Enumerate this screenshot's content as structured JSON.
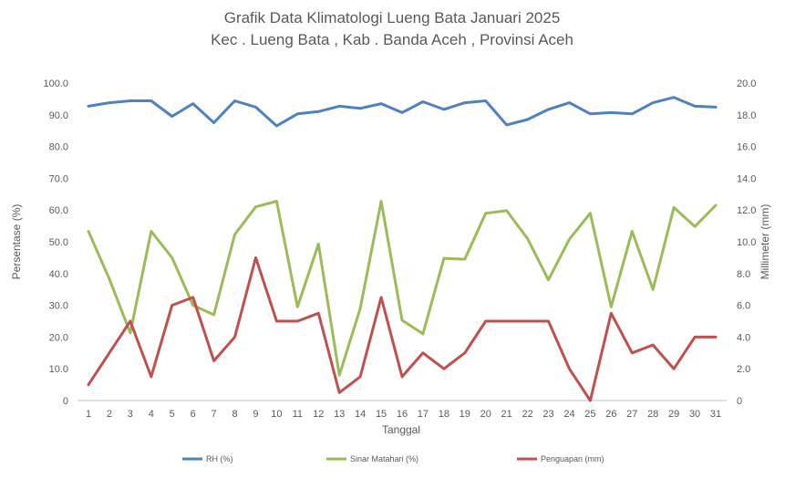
{
  "chart_data": {
    "type": "line",
    "title": "Grafik Data Klimatologi Lueng Bata Januari 2025",
    "subtitle": "Kec . Lueng Bata , Kab . Banda Aceh , Provinsi  Aceh",
    "xlabel": "Tanggal",
    "ylabel": "Persentase (%)",
    "y2label": "Millimeter (mm)",
    "ylim": [
      0,
      100
    ],
    "y2lim": [
      0,
      20
    ],
    "yticks": [
      "0",
      "10.0",
      "20.0",
      "30.0",
      "40.0",
      "50.0",
      "60.0",
      "70.0",
      "80.0",
      "90.0",
      "100.0"
    ],
    "y2ticks": [
      "0",
      "2.0",
      "4.0",
      "6.0",
      "8.0",
      "10.0",
      "12.0",
      "14.0",
      "16.0",
      "18.0",
      "20.0"
    ],
    "x": [
      "1",
      "2",
      "3",
      "4",
      "5",
      "6",
      "7",
      "8",
      "9",
      "10",
      "11",
      "12",
      "13",
      "14",
      "15",
      "16",
      "17",
      "18",
      "19",
      "20",
      "21",
      "22",
      "23",
      "24",
      "25",
      "26",
      "27",
      "28",
      "29",
      "30",
      "31"
    ],
    "grid": "off",
    "legend_position": "bottom",
    "series": [
      {
        "name": "RH (%)",
        "axis": "left",
        "color": "#4F81BD",
        "values": [
          92.7,
          93.8,
          94.4,
          94.4,
          89.5,
          93.5,
          87.5,
          94.4,
          92.4,
          86.5,
          90.3,
          91.0,
          92.7,
          92.0,
          93.5,
          90.7,
          94.1,
          91.7,
          93.8,
          94.4,
          86.8,
          88.5,
          91.7,
          93.8,
          90.3,
          90.7,
          90.3,
          93.8,
          95.5,
          92.7,
          92.4
        ]
      },
      {
        "name": "Sinar Matahari (%)",
        "axis": "left",
        "color": "#9BBB59",
        "values": [
          53.3,
          38.3,
          21.3,
          53.3,
          45.0,
          30.0,
          27.0,
          52.3,
          61.0,
          62.8,
          29.5,
          49.3,
          8.0,
          29.0,
          62.8,
          25.3,
          21.0,
          44.8,
          44.5,
          59.0,
          59.8,
          51.0,
          38.0,
          50.8,
          59.0,
          29.5,
          53.3,
          35.0,
          60.8,
          54.8,
          61.5
        ]
      },
      {
        "name": "Penguapan (mm)",
        "axis": "right",
        "color": "#C0504D",
        "values": [
          1.0,
          3.0,
          5.0,
          1.5,
          6.0,
          6.5,
          2.5,
          4.0,
          9.0,
          5.0,
          5.0,
          5.5,
          0.5,
          1.5,
          6.5,
          1.5,
          3.0,
          2.0,
          3.0,
          5.0,
          5.0,
          5.0,
          5.0,
          2.0,
          0.0,
          5.5,
          3.0,
          3.5,
          2.0,
          4.0,
          4.0
        ]
      }
    ]
  }
}
